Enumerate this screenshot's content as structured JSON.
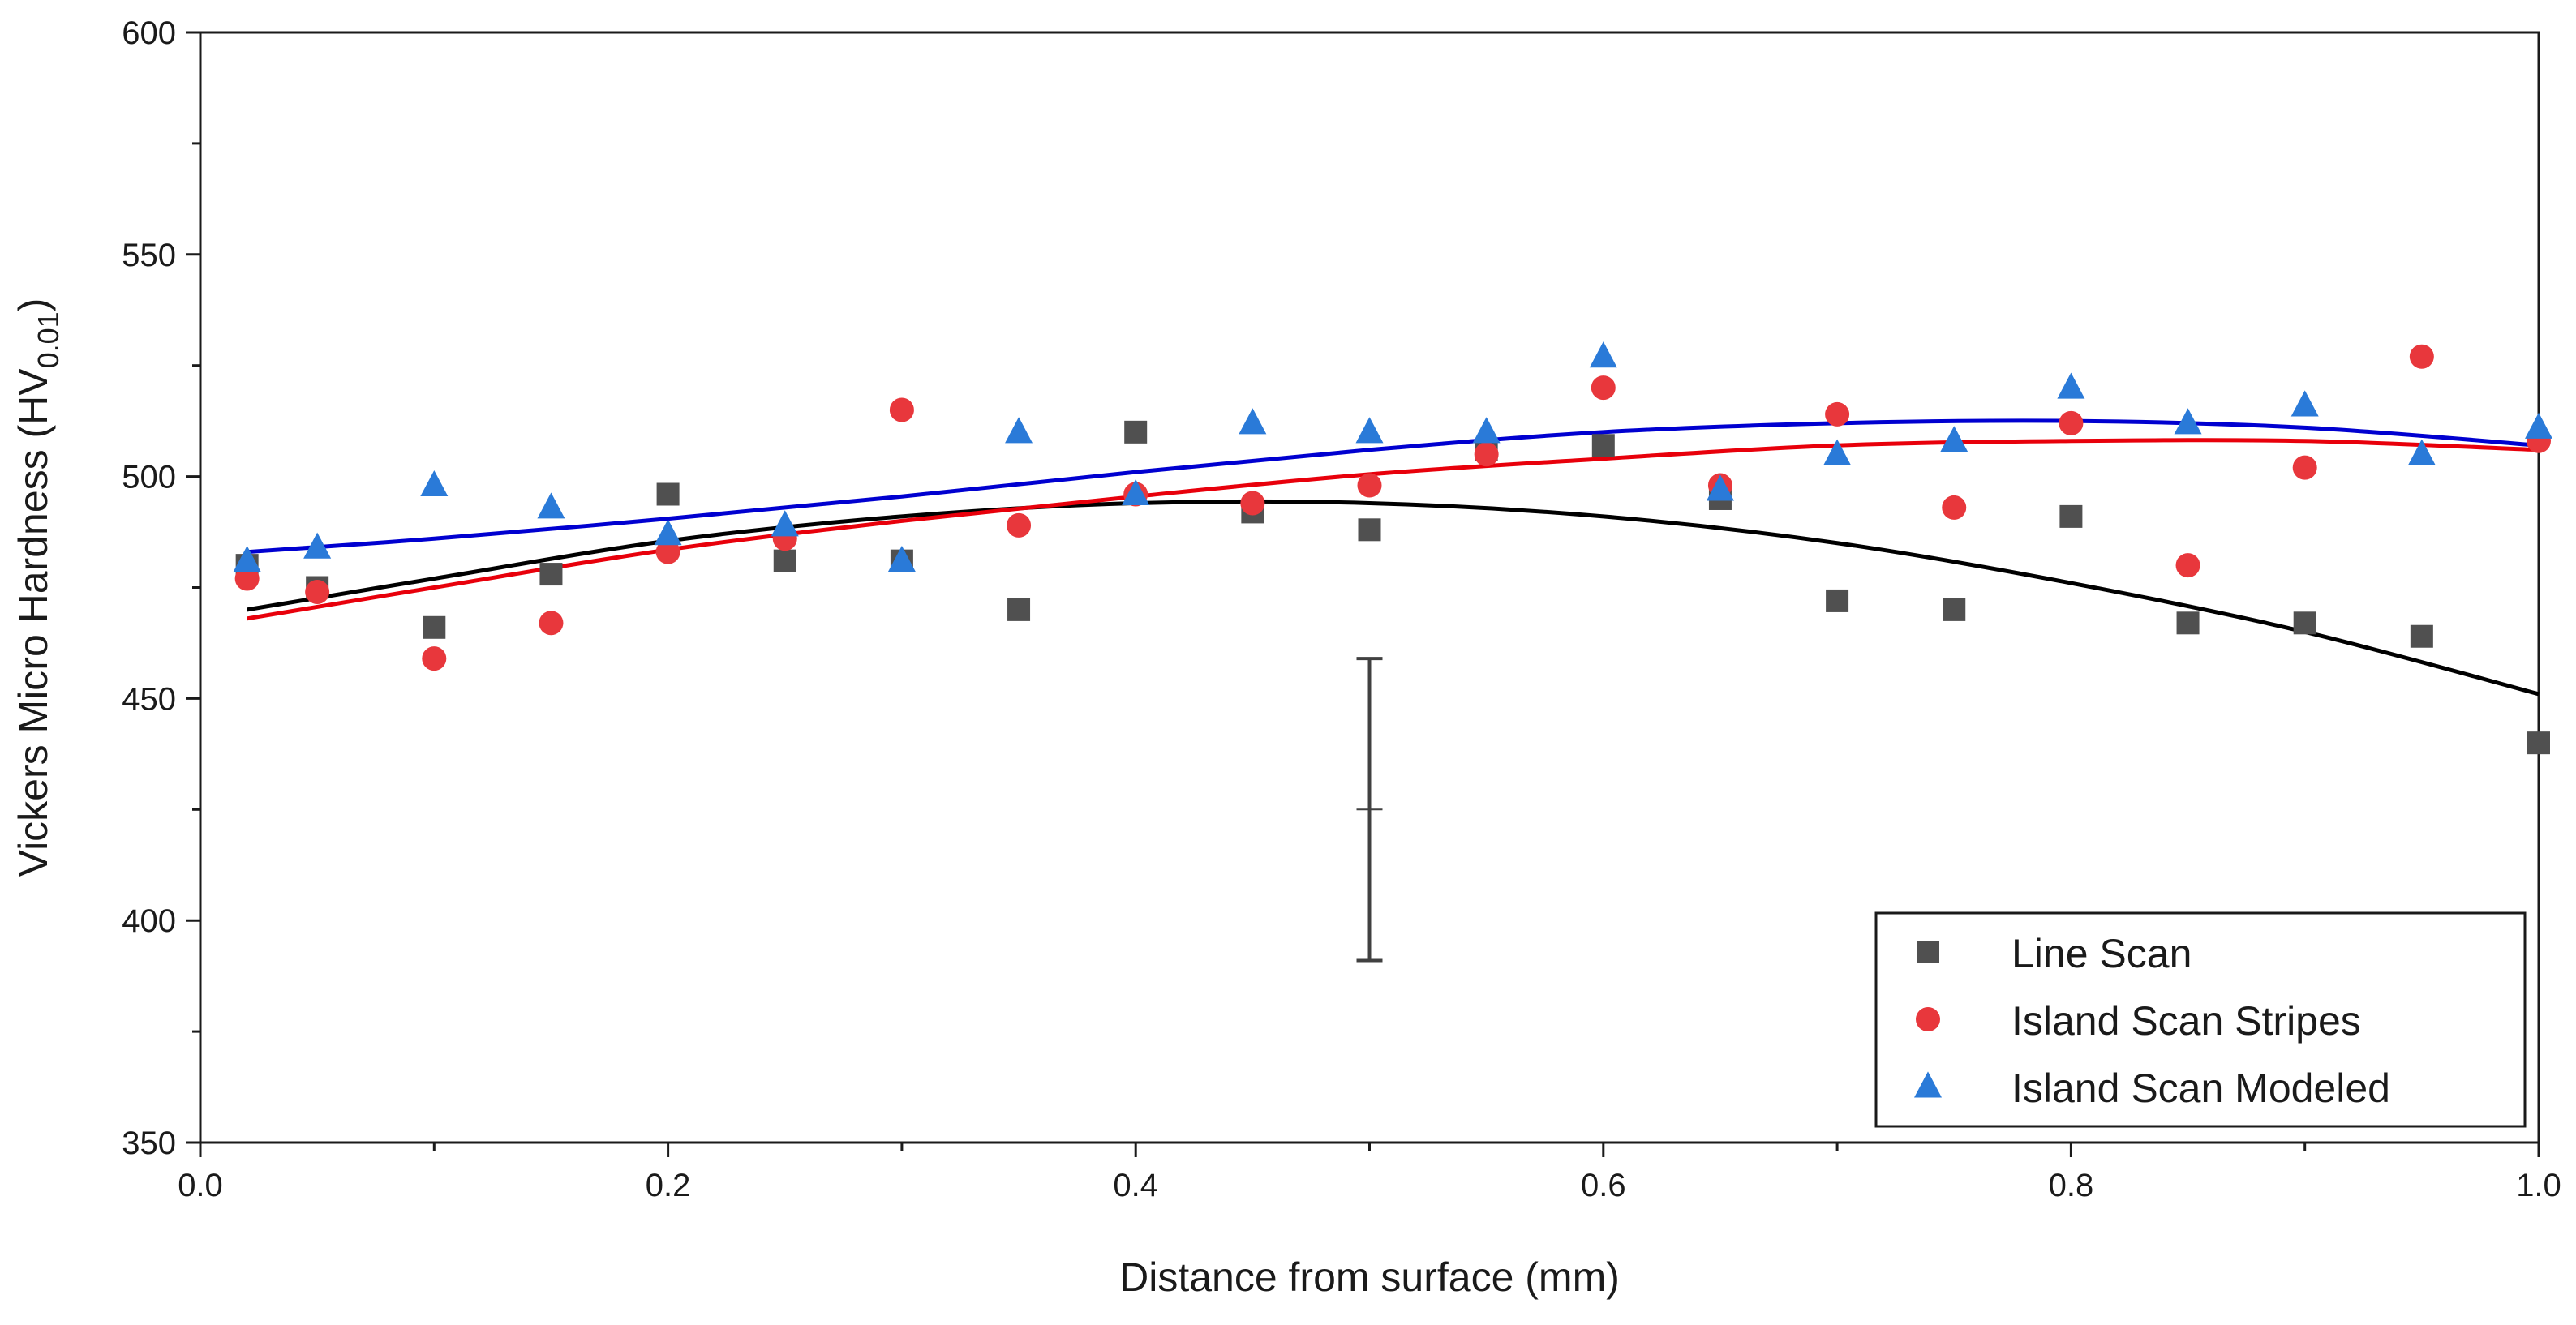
{
  "chart_data": {
    "type": "scatter",
    "title": "",
    "xlabel": "Distance from surface (mm)",
    "ylabel_main": "Vickers Micro Hardness (HV",
    "ylabel_sub": "0.01",
    "ylabel_close": ")",
    "xlim": [
      0.0,
      1.0
    ],
    "ylim": [
      350,
      600
    ],
    "x_ticks": [
      0.0,
      0.2,
      0.4,
      0.6,
      0.8,
      1.0
    ],
    "x_tick_labels": [
      "0.0",
      "0.2",
      "0.4",
      "0.6",
      "0.8",
      "1.0"
    ],
    "y_ticks": [
      350,
      400,
      450,
      500,
      550,
      600
    ],
    "y_tick_labels": [
      "350",
      "400",
      "450",
      "500",
      "550",
      "600"
    ],
    "grid": false,
    "legend_position": "bottom-right",
    "series": [
      {
        "name": "Line Scan",
        "marker": "square",
        "color": "#505050",
        "fit_color": "#000000",
        "x": [
          0.02,
          0.05,
          0.1,
          0.15,
          0.2,
          0.25,
          0.3,
          0.35,
          0.4,
          0.45,
          0.5,
          0.55,
          0.6,
          0.65,
          0.7,
          0.75,
          0.8,
          0.85,
          0.9,
          0.95,
          1.0
        ],
        "y": [
          480,
          475,
          466,
          478,
          496,
          481,
          481,
          470,
          510,
          492,
          488,
          506,
          507,
          495,
          472,
          470,
          491,
          467,
          467,
          464,
          440
        ],
        "fit_x": [
          0.02,
          0.1,
          0.2,
          0.3,
          0.4,
          0.5,
          0.6,
          0.7,
          0.8,
          0.9,
          1.0
        ],
        "fit_y": [
          470,
          477,
          485.5,
          491,
          494,
          494,
          491,
          485,
          476,
          465,
          451
        ]
      },
      {
        "name": "Island Scan Stripes",
        "marker": "circle",
        "color": "#e8373c",
        "fit_color": "#e8000b",
        "x": [
          0.02,
          0.05,
          0.1,
          0.15,
          0.2,
          0.25,
          0.3,
          0.35,
          0.4,
          0.45,
          0.5,
          0.55,
          0.6,
          0.65,
          0.7,
          0.75,
          0.8,
          0.85,
          0.9,
          0.95,
          1.0
        ],
        "y": [
          477,
          474,
          459,
          467,
          483,
          486,
          515,
          489,
          496,
          494,
          498,
          505,
          520,
          498,
          514,
          493,
          512,
          480,
          502,
          527,
          508
        ],
        "fit_x": [
          0.02,
          0.1,
          0.2,
          0.3,
          0.4,
          0.5,
          0.6,
          0.7,
          0.8,
          0.9,
          1.0
        ],
        "fit_y": [
          468,
          475,
          483.5,
          490,
          495.5,
          500.5,
          504,
          507,
          508,
          508,
          506
        ]
      },
      {
        "name": "Island Scan Modeled",
        "marker": "triangle",
        "color": "#2a7ad8",
        "fit_color": "#0000d0",
        "x": [
          0.02,
          0.05,
          0.1,
          0.15,
          0.2,
          0.25,
          0.3,
          0.35,
          0.4,
          0.45,
          0.5,
          0.55,
          0.6,
          0.65,
          0.7,
          0.75,
          0.8,
          0.85,
          0.9,
          0.95,
          1.0
        ],
        "y": [
          481,
          484,
          498,
          493,
          487,
          489,
          481,
          510,
          496,
          512,
          510,
          510,
          527,
          497,
          505,
          508,
          520,
          512,
          516,
          505,
          511
        ],
        "fit_x": [
          0.02,
          0.1,
          0.2,
          0.3,
          0.4,
          0.5,
          0.6,
          0.7,
          0.8,
          0.9,
          1.0
        ],
        "fit_y": [
          483,
          486,
          490.5,
          495.5,
          501,
          506,
          510,
          512,
          512.5,
          511,
          507
        ]
      }
    ],
    "error_bar": {
      "x": 0.5,
      "center": 425,
      "low": 391,
      "high": 459,
      "color": "#404040"
    }
  }
}
